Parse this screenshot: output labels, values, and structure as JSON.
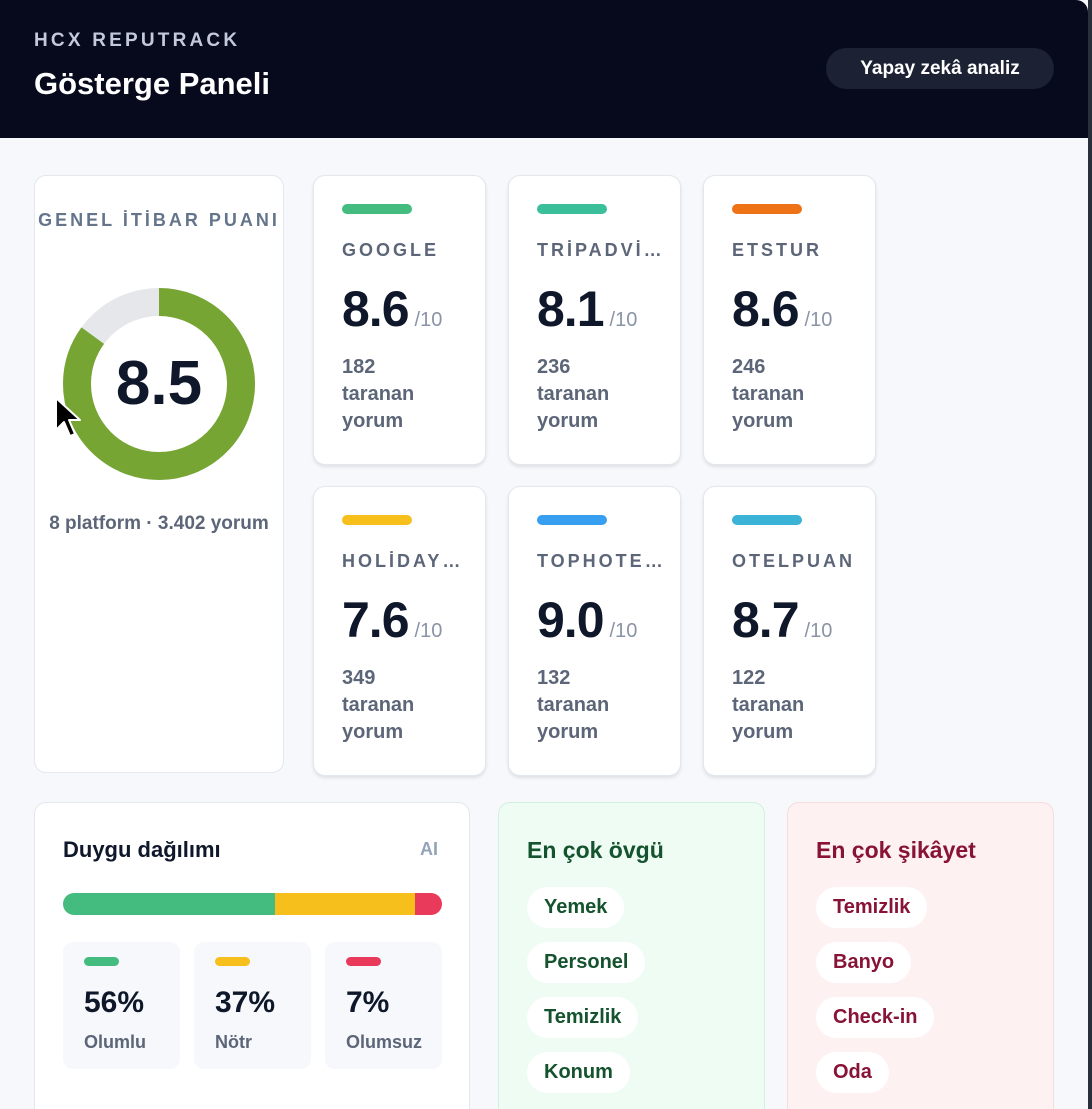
{
  "header": {
    "brand": "HCX REPUTRACK",
    "title": "Gösterge Paneli",
    "ai_button": "Yapay zekâ analiz"
  },
  "overall": {
    "label": "GENEL İTİBAR PUANI",
    "score": "8.5",
    "score_value": 8.5,
    "score_max": 10,
    "summary": "8 platform · 3.402 yorum",
    "gauge_color": "#77a534",
    "gauge_track_color": "#e5e7eb"
  },
  "platforms": [
    {
      "name": "GOOGLE",
      "score": "8.6",
      "denominator": "/10",
      "count": "182",
      "unit_line1": "taranan",
      "unit_line2": "yorum",
      "color": "#44bb7f"
    },
    {
      "name": "TRİPADVİSOR",
      "score": "8.1",
      "denominator": "/10",
      "count": "236",
      "unit_line1": "taranan",
      "unit_line2": "yorum",
      "color": "#3bbf9b"
    },
    {
      "name": "ETSTUR",
      "score": "8.6",
      "denominator": "/10",
      "count": "246",
      "unit_line1": "taranan",
      "unit_line2": "yorum",
      "color": "#ee7317"
    },
    {
      "name": "HOLİDAYCHECK",
      "score": "7.6",
      "denominator": "/10",
      "count": "349",
      "unit_line1": "taranan",
      "unit_line2": "yorum",
      "color": "#f6bf1c"
    },
    {
      "name": "TOPHOTELS",
      "score": "9.0",
      "denominator": "/10",
      "count": "132",
      "unit_line1": "taranan",
      "unit_line2": "yorum",
      "color": "#389ef0"
    },
    {
      "name": "OTELPUAN",
      "score": "8.7",
      "denominator": "/10",
      "count": "122",
      "unit_line1": "taranan",
      "unit_line2": "yorum",
      "color": "#3ab3d6"
    }
  ],
  "sentiment": {
    "title": "Duygu dağılımı",
    "badge": "AI",
    "items": [
      {
        "pct": "56%",
        "label": "Olumlu",
        "value": 56,
        "color": "#44bb7f"
      },
      {
        "pct": "37%",
        "label": "Nötr",
        "value": 37,
        "color": "#f6bf1c"
      },
      {
        "pct": "7%",
        "label": "Olumsuz",
        "value": 7,
        "color": "#ea3a5b"
      }
    ]
  },
  "praise": {
    "title": "En çok övgü",
    "tags": [
      "Yemek",
      "Personel",
      "Temizlik",
      "Konum"
    ]
  },
  "complaints": {
    "title": "En çok şikâyet",
    "tags": [
      "Temizlik",
      "Banyo",
      "Check-in",
      "Oda"
    ]
  }
}
